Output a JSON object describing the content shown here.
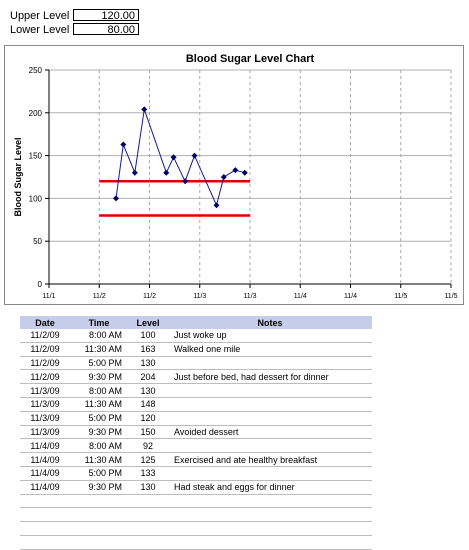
{
  "levels": {
    "upper_label": "Upper Level",
    "upper_value": "120.00",
    "lower_label": "Lower Level",
    "lower_value": "80.00"
  },
  "colors": {
    "series": "#1a1a8c",
    "threshold": "#e00000",
    "header_bg": "#c5cde8"
  },
  "chart_data": {
    "type": "line",
    "title": "Blood Sugar Level Chart",
    "ylabel": "Blood Sugar Level",
    "xlabel": "",
    "ylim": [
      0,
      250
    ],
    "yticks": [
      0,
      50,
      100,
      150,
      200,
      250
    ],
    "xticks": [
      "11/1",
      "11/2",
      "11/2",
      "11/3",
      "11/3",
      "11/4",
      "11/4",
      "11/5",
      "11/5"
    ],
    "grid": true,
    "series": [
      {
        "x": [
          "11/2/09 8:00 AM",
          "11/2/09 11:30 AM",
          "11/2/09 5:00 PM",
          "11/2/09 9:30 PM",
          "11/3/09 8:00 AM",
          "11/3/09 11:30 AM",
          "11/3/09 5:00 PM",
          "11/3/09 9:30 PM",
          "11/4/09 8:00 AM",
          "11/4/09 11:30 AM",
          "11/4/09 5:00 PM",
          "11/4/09 9:30 PM"
        ],
        "values": [
          100,
          163,
          130,
          204,
          130,
          148,
          120,
          150,
          92,
          125,
          133,
          130
        ]
      }
    ],
    "thresholds": [
      {
        "value": 120,
        "from": "11/2",
        "to": "11/5"
      },
      {
        "value": 80,
        "from": "11/2",
        "to": "11/5"
      }
    ]
  },
  "table": {
    "headers": [
      "Date",
      "Time",
      "Level",
      "Notes"
    ],
    "rows": [
      [
        "11/2/09",
        "8:00 AM",
        "100",
        "Just woke up"
      ],
      [
        "11/2/09",
        "11:30 AM",
        "163",
        "Walked one mile"
      ],
      [
        "11/2/09",
        "5:00 PM",
        "130",
        ""
      ],
      [
        "11/2/09",
        "9:30 PM",
        "204",
        "Just before bed, had dessert for dinner"
      ],
      [
        "11/3/09",
        "8:00 AM",
        "130",
        ""
      ],
      [
        "11/3/09",
        "11:30 AM",
        "148",
        ""
      ],
      [
        "11/3/09",
        "5:00 PM",
        "120",
        ""
      ],
      [
        "11/3/09",
        "9:30 PM",
        "150",
        "Avoided dessert"
      ],
      [
        "11/4/09",
        "8:00 AM",
        "92",
        ""
      ],
      [
        "11/4/09",
        "11:30 AM",
        "125",
        "Exercised and ate healthy breakfast"
      ],
      [
        "11/4/09",
        "5:00 PM",
        "133",
        ""
      ],
      [
        "11/4/09",
        "9:30 PM",
        "130",
        "Had steak and eggs for dinner"
      ]
    ],
    "empty_rows": 4
  }
}
